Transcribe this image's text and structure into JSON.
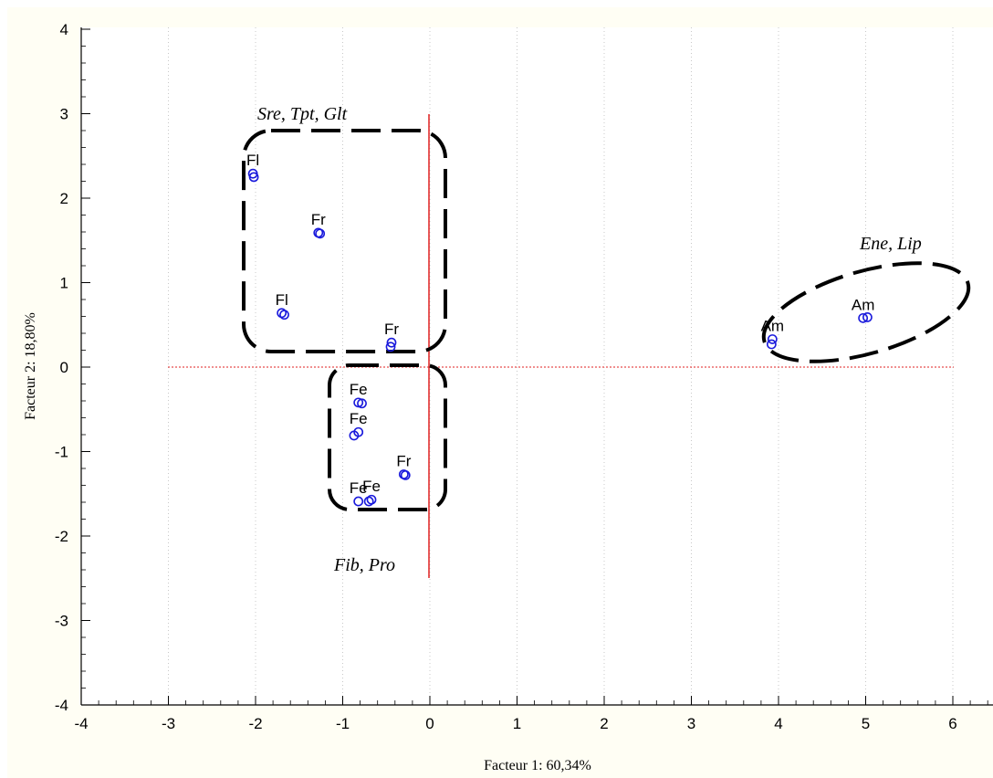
{
  "chart_data": {
    "type": "scatter",
    "xlabel": "Facteur 1: 60,34%",
    "ylabel": "Facteur 2: 18,80%",
    "xlim": [
      -4,
      6.5
    ],
    "ylim": [
      -4,
      4
    ],
    "x_ticks": [
      "-4",
      "-3",
      "-2",
      "-1",
      "0",
      "1",
      "2",
      "3",
      "4",
      "5",
      "6"
    ],
    "y_ticks": [
      "4",
      "3",
      "2",
      "1",
      "0",
      "-1",
      "-2",
      "-3",
      "-4"
    ],
    "grid": "vertical-dotted",
    "colors": {
      "point": "#1a1adc",
      "axis_line": "#e02020",
      "background": "#fffef4"
    },
    "points": [
      {
        "label": "Fl",
        "x": -2.03,
        "y": 2.29
      },
      {
        "label": "",
        "x": -2.02,
        "y": 2.25
      },
      {
        "label": "Fr",
        "x": -1.28,
        "y": 1.59
      },
      {
        "label": "",
        "x": -1.26,
        "y": 1.58
      },
      {
        "label": "Fl",
        "x": -1.7,
        "y": 0.64
      },
      {
        "label": "",
        "x": -1.67,
        "y": 0.62
      },
      {
        "label": "Fr",
        "x": -0.44,
        "y": 0.29
      },
      {
        "label": "",
        "x": -0.45,
        "y": 0.24
      },
      {
        "label": "Fe",
        "x": -0.82,
        "y": -0.42
      },
      {
        "label": "",
        "x": -0.78,
        "y": -0.43
      },
      {
        "label": "Fe",
        "x": -0.82,
        "y": -0.77
      },
      {
        "label": "",
        "x": -0.87,
        "y": -0.81
      },
      {
        "label": "Fr",
        "x": -0.3,
        "y": -1.27
      },
      {
        "label": "",
        "x": -0.28,
        "y": -1.28
      },
      {
        "label": "Fe",
        "x": -0.82,
        "y": -1.59
      },
      {
        "label": "Fe",
        "x": -0.67,
        "y": -1.57
      },
      {
        "label": "",
        "x": -0.7,
        "y": -1.59
      },
      {
        "label": "Am",
        "x": 3.93,
        "y": 0.33
      },
      {
        "label": "",
        "x": 3.92,
        "y": 0.27
      },
      {
        "label": "Am",
        "x": 4.97,
        "y": 0.58
      },
      {
        "label": "",
        "x": 5.02,
        "y": 0.59
      }
    ],
    "annotations": [
      {
        "text": "Sre, Tpt, Glt"
      },
      {
        "text": "Ene, Lip"
      },
      {
        "text": "Fib, Pro"
      }
    ]
  }
}
